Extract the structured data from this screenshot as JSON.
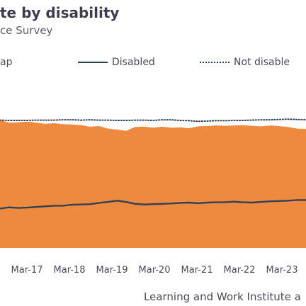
{
  "header": {
    "title": "te by disability",
    "subtitle": "ce Survey"
  },
  "legend": {
    "gap_label": "ap",
    "disabled_label": "Disabled",
    "not_disabled_label": "Not disable"
  },
  "footer": {
    "source": "Learning and Work Institute a"
  },
  "colors": {
    "gap_fill": "#ee8a3f",
    "line": "#2e4257"
  },
  "chart_data": {
    "type": "area",
    "x_labels": [
      "Mar-17",
      "Mar-18",
      "Mar-19",
      "Mar-20",
      "Mar-21",
      "Mar-22",
      "Mar-23"
    ],
    "series": [
      {
        "name": "Not disable",
        "style": "dotted",
        "values": [
          80.6,
          80.5,
          80.5,
          80.5,
          80.6,
          80.6,
          80.6,
          80.7,
          80.7,
          80.6,
          80.7,
          80.6,
          80.6,
          80.5,
          80.5,
          80.6,
          80.6,
          80.5,
          80.7,
          80.7,
          80.5,
          80.4,
          80.2,
          80.3,
          80.4,
          80.4,
          80.5,
          80.5,
          80.6,
          80.7,
          80.7,
          80.8,
          80.9,
          80.8,
          80.7
        ]
      },
      {
        "name": "Disabled",
        "style": "solid",
        "values": [
          52.5,
          52.9,
          52.7,
          52.8,
          53.0,
          53.2,
          53.4,
          53.4,
          53.7,
          53.8,
          53.9,
          54.3,
          54.6,
          55.0,
          54.6,
          54.0,
          53.8,
          53.9,
          54.0,
          54.1,
          54.3,
          54.4,
          54.2,
          54.4,
          54.5,
          54.5,
          54.7,
          54.5,
          54.4,
          54.6,
          54.8,
          54.9,
          55.0,
          55.2,
          55.2
        ]
      }
    ],
    "fill_between": {
      "name": "ap",
      "lower_series": "Disabled",
      "upper_values": [
        80.6,
        79.8,
        79.9,
        80.1,
        79.8,
        79.4,
        79.6,
        79.3,
        79.2,
        79.0,
        78.5,
        78.7,
        77.9,
        77.6,
        77.2,
        78.4,
        78.5,
        78.2,
        78.5,
        78.2,
        78.3,
        78.0,
        78.6,
        78.7,
        78.9,
        78.8,
        78.9,
        79.0,
        78.8,
        78.6,
        78.9,
        78.7,
        78.4,
        77.9,
        77.8
      ]
    },
    "ylim": [
      40,
      85
    ],
    "grid": false,
    "legend_position": "top"
  }
}
